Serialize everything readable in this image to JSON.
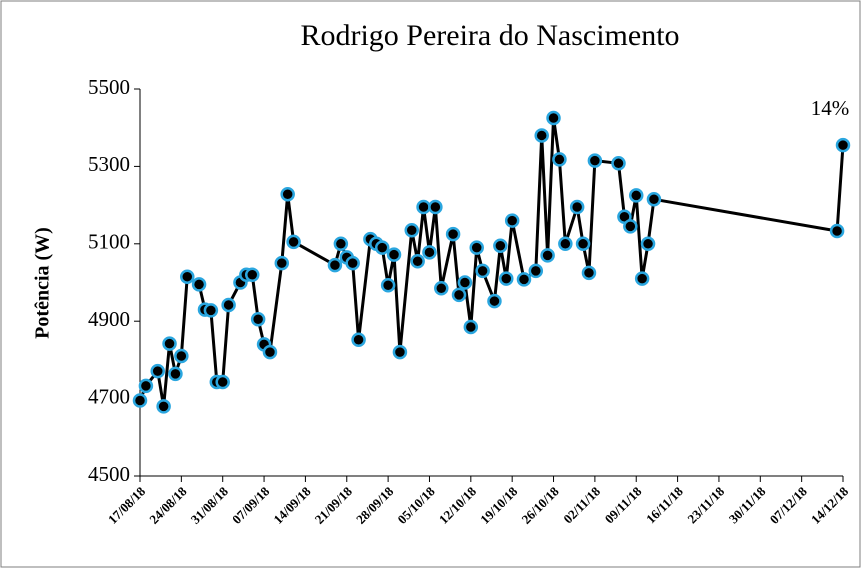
{
  "chart_data": {
    "type": "line",
    "title": "Rodrigo Pereira do Nascimento",
    "y_label": "Potência (W)",
    "annotation": "14%",
    "x": [
      "2018-08-17",
      "2018-08-18",
      "2018-08-20",
      "2018-08-21",
      "2018-08-22",
      "2018-08-23",
      "2018-08-24",
      "2018-08-25",
      "2018-08-27",
      "2018-08-28",
      "2018-08-29",
      "2018-08-30",
      "2018-08-31",
      "2018-09-01",
      "2018-09-03",
      "2018-09-04",
      "2018-09-05",
      "2018-09-06",
      "2018-09-07",
      "2018-09-08",
      "2018-09-10",
      "2018-09-11",
      "2018-09-12",
      "2018-09-19",
      "2018-09-20",
      "2018-09-21",
      "2018-09-22",
      "2018-09-23",
      "2018-09-25",
      "2018-09-26",
      "2018-09-27",
      "2018-09-28",
      "2018-09-29",
      "2018-09-30",
      "2018-10-02",
      "2018-10-03",
      "2018-10-04",
      "2018-10-05",
      "2018-10-06",
      "2018-10-07",
      "2018-10-09",
      "2018-10-10",
      "2018-10-11",
      "2018-10-12",
      "2018-10-13",
      "2018-10-14",
      "2018-10-16",
      "2018-10-17",
      "2018-10-18",
      "2018-10-19",
      "2018-10-21",
      "2018-10-23",
      "2018-10-24",
      "2018-10-25",
      "2018-10-26",
      "2018-10-27",
      "2018-10-28",
      "2018-10-30",
      "2018-10-31",
      "2018-11-01",
      "2018-11-02",
      "2018-11-06",
      "2018-11-07",
      "2018-11-08",
      "2018-11-09",
      "2018-11-10",
      "2018-11-11",
      "2018-11-12",
      "2018-12-13",
      "2018-12-14"
    ],
    "series": [
      {
        "name": "Potência",
        "color": "#000000",
        "marker_edge": "#2aa6df",
        "values": [
          4695,
          4733,
          4771,
          4680,
          4842,
          4764,
          4810,
          5015,
          4995,
          4930,
          4928,
          4743,
          4743,
          4942,
          5000,
          5020,
          5020,
          4905,
          4840,
          4820,
          5050,
          5228,
          5105,
          5045,
          5100,
          5065,
          5050,
          4852,
          5112,
          5100,
          5090,
          4993,
          5072,
          4820,
          5135,
          5055,
          5195,
          5078,
          5195,
          4985,
          5125,
          4968,
          5000,
          4885,
          5090,
          5030,
          4952,
          5095,
          5010,
          5160,
          5008,
          5030,
          5380,
          5070,
          5425,
          5318,
          5100,
          5195,
          5100,
          5025,
          5315,
          5308,
          5170,
          5145,
          5225,
          5010,
          5100,
          5215,
          5133,
          5355
        ]
      }
    ],
    "xlim": [
      "2018-08-17",
      "2018-12-14"
    ],
    "xticks": [
      {
        "value": "2018-08-17",
        "label": "17/08/18"
      },
      {
        "value": "2018-08-24",
        "label": "24/08/18"
      },
      {
        "value": "2018-08-31",
        "label": "31/08/18"
      },
      {
        "value": "2018-09-07",
        "label": "07/09/18"
      },
      {
        "value": "2018-09-14",
        "label": "14/09/18"
      },
      {
        "value": "2018-09-21",
        "label": "21/09/18"
      },
      {
        "value": "2018-09-28",
        "label": "28/09/18"
      },
      {
        "value": "2018-10-05",
        "label": "05/10/18"
      },
      {
        "value": "2018-10-12",
        "label": "12/10/18"
      },
      {
        "value": "2018-10-19",
        "label": "19/10/18"
      },
      {
        "value": "2018-10-26",
        "label": "26/10/18"
      },
      {
        "value": "2018-11-02",
        "label": "02/11/18"
      },
      {
        "value": "2018-11-09",
        "label": "09/11/18"
      },
      {
        "value": "2018-11-16",
        "label": "16/11/18"
      },
      {
        "value": "2018-11-23",
        "label": "23/11/18"
      },
      {
        "value": "2018-11-30",
        "label": "30/11/18"
      },
      {
        "value": "2018-12-07",
        "label": "07/12/18"
      },
      {
        "value": "2018-12-14",
        "label": "14/12/18"
      }
    ],
    "ylim": [
      4500,
      5500
    ],
    "yticks": [
      4500,
      4700,
      4900,
      5100,
      5300,
      5500
    ],
    "grid": false
  }
}
